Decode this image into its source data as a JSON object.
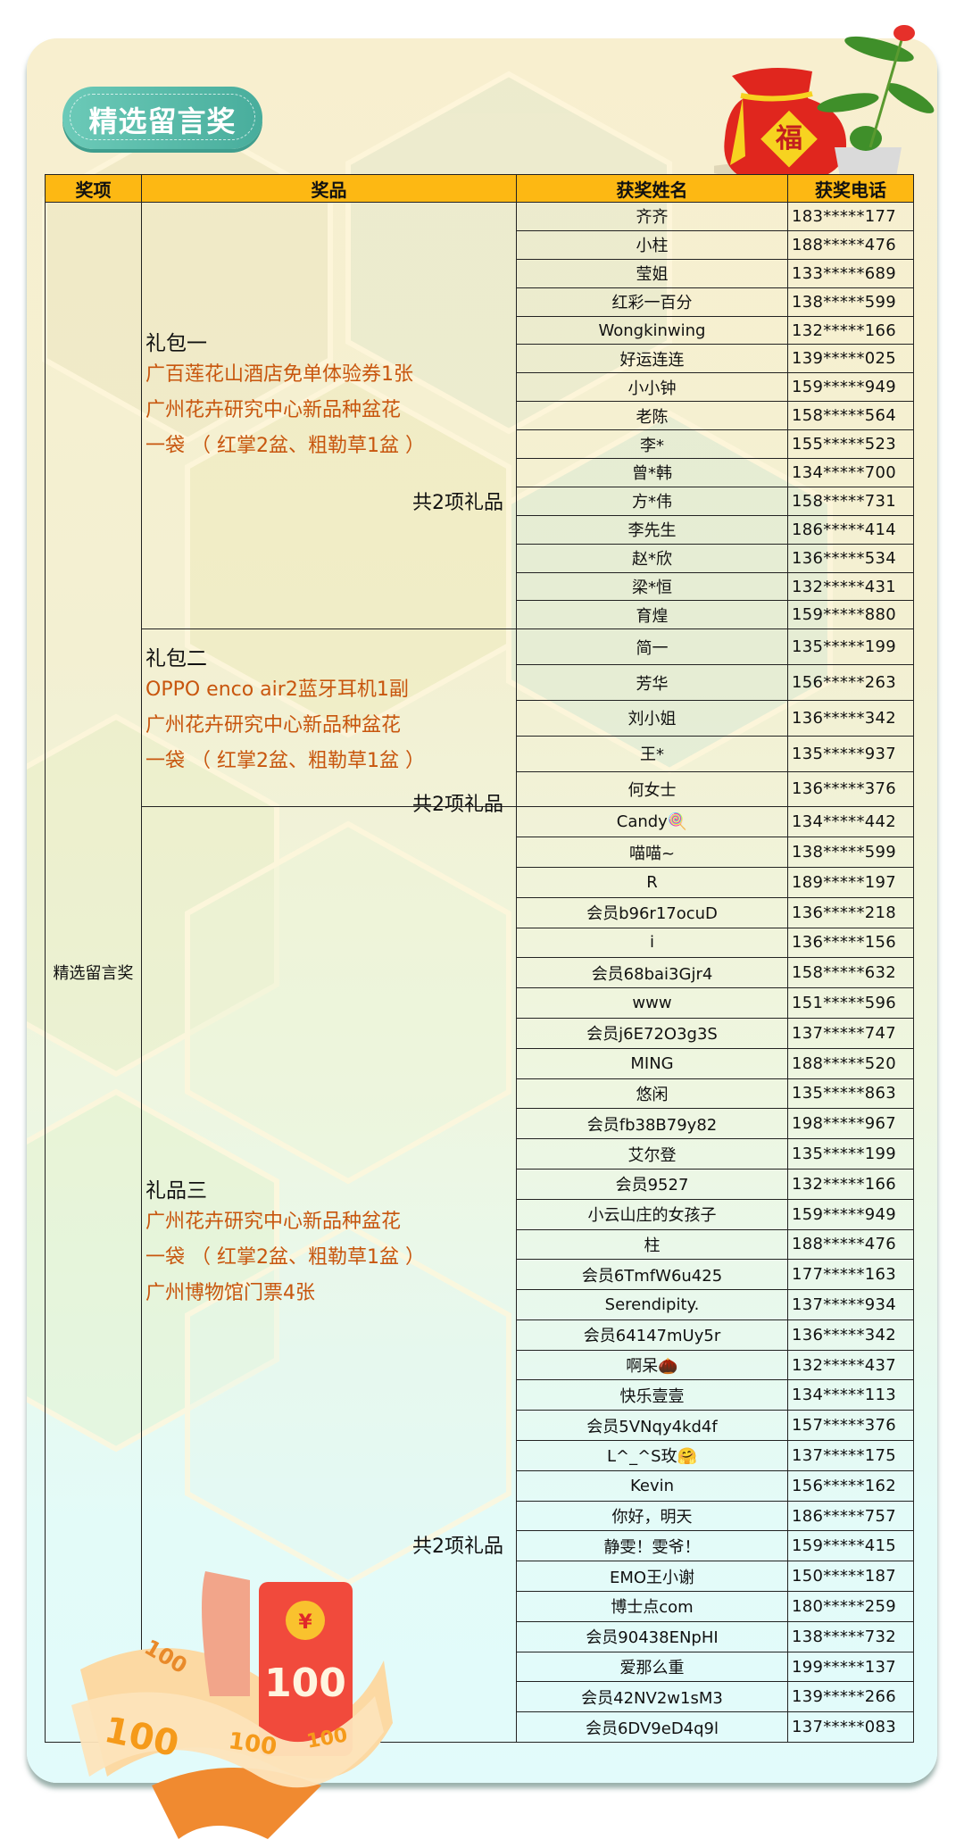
{
  "title": "精选留言奖",
  "headers": [
    "奖项",
    "奖品",
    "获奖姓名",
    "获奖电话"
  ],
  "award": "精选留言奖",
  "groups": [
    {
      "title": "礼包一",
      "items": [
        "广百莲花山酒店免单体验券1张",
        "广州花卉研究中心新品种盆花",
        "一袋 （ 红掌2盆、粗勒草1盆 ）"
      ],
      "total": "共2项礼品",
      "winners": [
        [
          "齐齐",
          "183*****177"
        ],
        [
          "小柱",
          "188*****476"
        ],
        [
          "莹姐",
          "133*****689"
        ],
        [
          "红彩一百分",
          "138*****599"
        ],
        [
          "Wongkinwing",
          "132*****166"
        ],
        [
          "好运连连",
          "139*****025"
        ],
        [
          "小小钟",
          "159*****949"
        ],
        [
          "老陈",
          "158*****564"
        ],
        [
          "李*",
          "155*****523"
        ],
        [
          "曾*韩",
          "134*****700"
        ],
        [
          "方*伟",
          "158*****731"
        ],
        [
          "李先生",
          "186*****414"
        ],
        [
          "赵*欣",
          "136*****534"
        ],
        [
          "梁*恒",
          "132*****431"
        ],
        [
          "育煌",
          "159*****880"
        ]
      ]
    },
    {
      "title": "礼包二",
      "items": [
        "OPPO enco air2蓝牙耳机1副",
        "广州花卉研究中心新品种盆花",
        "一袋 （ 红掌2盆、粗勒草1盆 ）"
      ],
      "total": "共2项礼品",
      "winners": [
        [
          "简一",
          "135*****199"
        ],
        [
          "芳华",
          "156*****263"
        ],
        [
          "刘小姐",
          "136*****342"
        ],
        [
          "王*",
          "135*****937"
        ],
        [
          "何女士",
          "136*****376"
        ]
      ]
    },
    {
      "title": "礼品三",
      "items": [
        "广州花卉研究中心新品种盆花",
        "一袋 （ 红掌2盆、粗勒草1盆 ）",
        "广州博物馆门票4张"
      ],
      "total": "共2项礼品",
      "winners": [
        [
          "Candy🍭",
          "134*****442"
        ],
        [
          "喵喵~",
          "138*****599"
        ],
        [
          "R",
          "189*****197"
        ],
        [
          "会员b96r17ocuD",
          "136*****218"
        ],
        [
          "i",
          "136*****156"
        ],
        [
          "会员68bai3Gjr4",
          "158*****632"
        ],
        [
          "www",
          "151*****596"
        ],
        [
          "会员j6E72O3g3S",
          "137*****747"
        ],
        [
          "MING",
          "188*****520"
        ],
        [
          "悠闲",
          "135*****863"
        ],
        [
          "会员fb38B79y82",
          "198*****967"
        ],
        [
          "艾尔登",
          "135*****199"
        ],
        [
          "会员9527",
          "132*****166"
        ],
        [
          "小云山庄的女孩子",
          "159*****949"
        ],
        [
          "柱",
          "188*****476"
        ],
        [
          "会员6TmfW6u425",
          "177*****163"
        ],
        [
          "Serendipity.",
          "137*****934"
        ],
        [
          "会员64147mUy5r",
          "136*****342"
        ],
        [
          "啊呆🌰",
          "132*****437"
        ],
        [
          "快乐壹壹",
          "134*****113"
        ],
        [
          "会员5VNqy4kd4f",
          "157*****376"
        ],
        [
          "L^_^S玫🤗",
          "137*****175"
        ],
        [
          "Kevin",
          "156*****162"
        ],
        [
          "你好，明天",
          "186*****757"
        ],
        [
          "静雯！雯爷！",
          "159*****415"
        ],
        [
          "EMO王小谢",
          "150*****187"
        ],
        [
          "博士点com",
          "180*****259"
        ],
        [
          "会员90438ENpHI",
          "138*****732"
        ],
        [
          "爱那么重",
          "199*****137"
        ],
        [
          "会员42NV2w1sM3",
          "139*****266"
        ],
        [
          "会员6DV9eD4q9l",
          "137*****083"
        ]
      ]
    }
  ],
  "decorations": {
    "lucky_bag_char": "福",
    "red_envelope_value": "100",
    "coupon_values": [
      "100",
      "100",
      "100",
      "100"
    ]
  },
  "colors": {
    "header": "#fdb813",
    "prize_text": "#c8560e",
    "badge": "#52b5a4"
  }
}
